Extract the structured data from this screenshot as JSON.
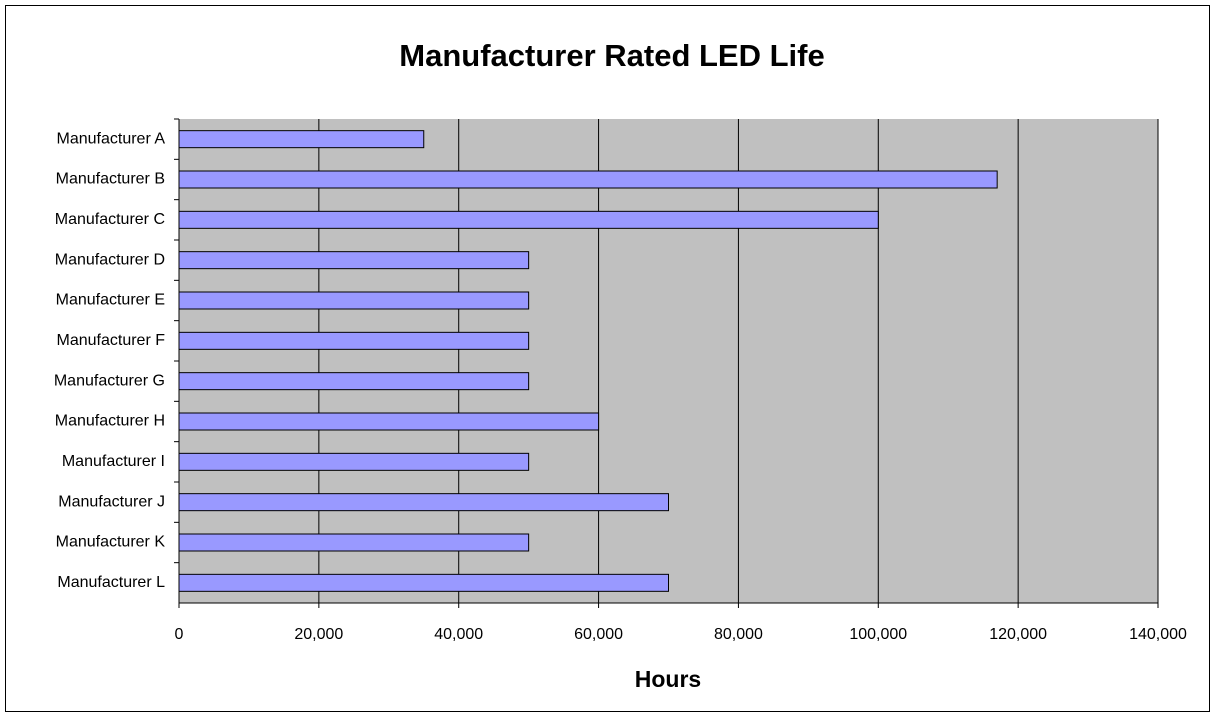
{
  "chart_data": {
    "type": "bar",
    "orientation": "horizontal",
    "title": "Manufacturer Rated LED Life",
    "x_label": "Hours",
    "categories": [
      "Manufacturer A",
      "Manufacturer B",
      "Manufacturer C",
      "Manufacturer D",
      "Manufacturer E",
      "Manufacturer F",
      "Manufacturer G",
      "Manufacturer H",
      "Manufacturer I",
      "Manufacturer J",
      "Manufacturer K",
      "Manufacturer L"
    ],
    "values": [
      35000,
      117000,
      100000,
      50000,
      50000,
      50000,
      50000,
      60000,
      50000,
      70000,
      50000,
      70000
    ],
    "color": "#9999ff",
    "xlim": [
      0,
      140000
    ],
    "xticks": [
      0,
      {
        "value": 20000,
        "label": "20,000"
      },
      {
        "value": 40000,
        "label": "40,000"
      },
      {
        "value": 60000,
        "label": "60,000"
      },
      {
        "value": 80000,
        "label": "80,000"
      },
      {
        "value": 100000,
        "label": "100,000"
      },
      {
        "value": 120000,
        "label": "120,000"
      },
      {
        "value": 140000,
        "label": "140,000"
      }
    ],
    "grid": true
  }
}
